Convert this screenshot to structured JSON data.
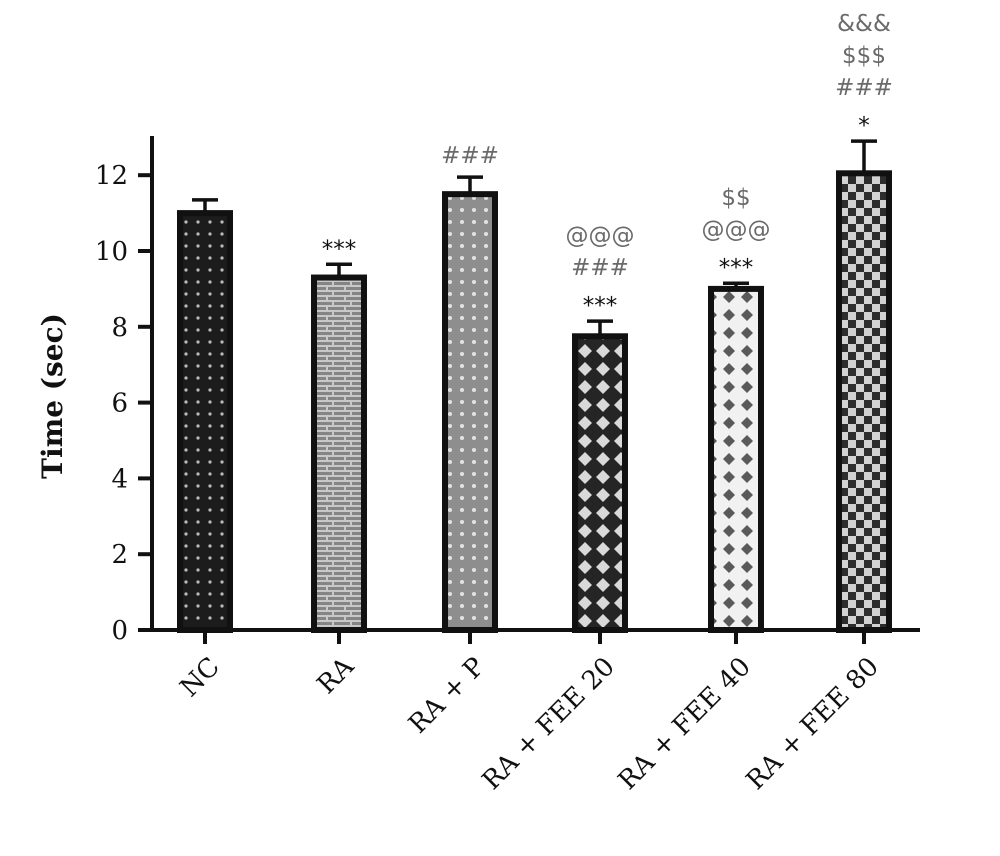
{
  "chart_data": {
    "type": "bar",
    "ylabel": "Time (sec)",
    "xlabel": "",
    "ylim": [
      0,
      13
    ],
    "yticks": [
      0,
      2,
      4,
      6,
      8,
      10,
      12
    ],
    "categories": [
      "NC",
      "RA",
      "RA + P",
      "RA + FEE 20",
      "RA + FEE 40",
      "RA + FEE 80"
    ],
    "values": [
      11.0,
      9.3,
      11.5,
      7.75,
      9.0,
      12.05
    ],
    "errors": [
      0.35,
      0.35,
      0.45,
      0.4,
      0.15,
      0.85
    ],
    "annotations": [
      [],
      [
        "***"
      ],
      [
        "###"
      ],
      [
        "@@@",
        "###",
        "***"
      ],
      [
        "$$",
        "@@@",
        "***"
      ],
      [
        "&&&",
        "$$$",
        "###",
        "*"
      ]
    ],
    "bar_patterns": [
      "dots-dark",
      "brick-gray",
      "dots-lightgray",
      "diamond-dark",
      "diamond-light",
      "checker"
    ],
    "colors": {
      "axis": "#111111",
      "star_annotation": "#111111",
      "other_annotation": "#6a6a6a"
    }
  }
}
